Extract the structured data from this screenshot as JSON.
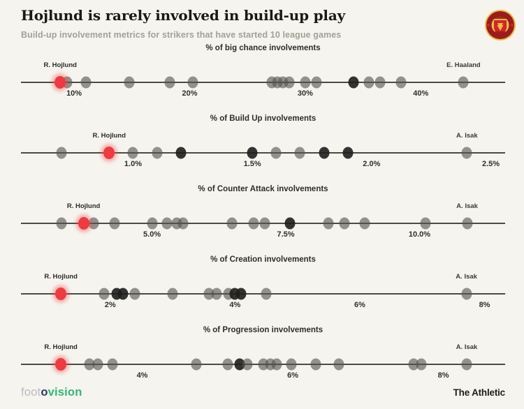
{
  "header": {
    "title": "Hojlund is rarely involved in build-up play",
    "subtitle": "Build-up involvement metrics for strikers that have started 10 league games",
    "club_badge": "Manchester United crest"
  },
  "footer": {
    "brand_left": {
      "foot": "foot",
      "o": "o",
      "vision": "vision"
    },
    "brand_right": "The Athletic"
  },
  "colors": {
    "background": "#f5f4ee",
    "accent_red": "#ee3a40",
    "dot_gray": "#55544f",
    "dot_dark": "#1e1e1c",
    "axis": "#4a4a46",
    "brand_green": "#33b57a",
    "brand_navy": "#273a60",
    "brand_gray": "#b9bcc4"
  },
  "chart_data": [
    {
      "type": "scatter",
      "title": "% of big chance involvements",
      "axis": {
        "min": 5.4,
        "max": 47.3,
        "grid": false
      },
      "ticks": [
        {
          "value": 10,
          "label": "10%"
        },
        {
          "value": 20,
          "label": "20%"
        },
        {
          "value": 30,
          "label": "30%"
        },
        {
          "value": 40,
          "label": "40%"
        }
      ],
      "highlight": {
        "name": "R. Hojlund",
        "value": 8.8
      },
      "annotation": {
        "name": "E. Haaland",
        "value": 43.7
      },
      "points": [
        {
          "value": 9.4
        },
        {
          "value": 11.0
        },
        {
          "value": 14.8
        },
        {
          "value": 18.3
        },
        {
          "value": 20.3
        },
        {
          "value": 27.1
        },
        {
          "value": 27.6
        },
        {
          "value": 28.1
        },
        {
          "value": 28.6
        },
        {
          "value": 30.0
        },
        {
          "value": 31.0
        },
        {
          "value": 34.2,
          "dark": true
        },
        {
          "value": 35.5
        },
        {
          "value": 36.5
        },
        {
          "value": 38.3
        }
      ]
    },
    {
      "type": "scatter",
      "title": "% of Build Up involvements",
      "axis": {
        "min": 0.53,
        "max": 2.56,
        "grid": false
      },
      "ticks": [
        {
          "value": 1.0,
          "label": "1.0%"
        },
        {
          "value": 1.5,
          "label": "1.5%"
        },
        {
          "value": 2.0,
          "label": "2.0%"
        },
        {
          "value": 2.5,
          "label": "2.5%"
        }
      ],
      "highlight": {
        "name": "R. Hojlund",
        "value": 0.9
      },
      "annotation": {
        "name": "A. Isak",
        "value": 2.4
      },
      "points": [
        {
          "value": 0.7
        },
        {
          "value": 1.0
        },
        {
          "value": 1.1
        },
        {
          "value": 1.2,
          "dark": true
        },
        {
          "value": 1.5,
          "dark": true
        },
        {
          "value": 1.6
        },
        {
          "value": 1.7
        },
        {
          "value": 1.8,
          "dark": true
        },
        {
          "value": 1.9,
          "dark": true
        }
      ]
    },
    {
      "type": "scatter",
      "title": "% of Counter Attack involvements",
      "axis": {
        "min": 2.55,
        "max": 11.6,
        "grid": false
      },
      "ticks": [
        {
          "value": 5.0,
          "label": "5.0%"
        },
        {
          "value": 7.5,
          "label": "7.5%"
        },
        {
          "value": 10.0,
          "label": "10.0%"
        }
      ],
      "highlight": {
        "name": "R. Hojlund",
        "value": 3.72
      },
      "annotation": {
        "name": "A. Isak",
        "value": 10.89
      },
      "points": [
        {
          "value": 3.31
        },
        {
          "value": 3.91
        },
        {
          "value": 4.3
        },
        {
          "value": 5.0
        },
        {
          "value": 5.28
        },
        {
          "value": 5.46
        },
        {
          "value": 5.58
        },
        {
          "value": 6.5
        },
        {
          "value": 6.9
        },
        {
          "value": 7.11
        },
        {
          "value": 7.58,
          "dark": true
        },
        {
          "value": 8.29
        },
        {
          "value": 8.59
        },
        {
          "value": 8.98
        },
        {
          "value": 10.11
        }
      ]
    },
    {
      "type": "scatter",
      "title": "% of Creation involvements",
      "axis": {
        "min": 0.57,
        "max": 8.33,
        "grid": false
      },
      "ticks": [
        {
          "value": 2,
          "label": "2%"
        },
        {
          "value": 4,
          "label": "4%"
        },
        {
          "value": 6,
          "label": "6%"
        },
        {
          "value": 8,
          "label": "8%"
        }
      ],
      "highlight": {
        "name": "R. Hojlund",
        "value": 1.21
      },
      "annotation": {
        "name": "A. Isak",
        "value": 7.71
      },
      "points": [
        {
          "value": 1.9
        },
        {
          "value": 2.1,
          "dark": true
        },
        {
          "value": 2.21,
          "dark": true
        },
        {
          "value": 2.4
        },
        {
          "value": 3.0
        },
        {
          "value": 3.58
        },
        {
          "value": 3.7
        },
        {
          "value": 3.9
        },
        {
          "value": 4.0,
          "dark": true
        },
        {
          "value": 4.1,
          "dark": true
        },
        {
          "value": 4.5
        }
      ]
    },
    {
      "type": "scatter",
      "title": "% of Progression involvements",
      "axis": {
        "min": 2.39,
        "max": 8.82,
        "grid": false
      },
      "ticks": [
        {
          "value": 4,
          "label": "4%"
        },
        {
          "value": 6,
          "label": "6%"
        },
        {
          "value": 8,
          "label": "8%"
        }
      ],
      "highlight": {
        "name": "R. Hojlund",
        "value": 2.92
      },
      "annotation": {
        "name": "A. Isak",
        "value": 8.31
      },
      "points": [
        {
          "value": 3.3
        },
        {
          "value": 3.41
        },
        {
          "value": 3.61
        },
        {
          "value": 4.72
        },
        {
          "value": 5.14
        },
        {
          "value": 5.29,
          "dark": true
        },
        {
          "value": 5.4
        },
        {
          "value": 5.61
        },
        {
          "value": 5.7
        },
        {
          "value": 5.79
        },
        {
          "value": 5.98
        },
        {
          "value": 6.31
        },
        {
          "value": 6.61
        },
        {
          "value": 7.6
        },
        {
          "value": 7.71
        }
      ]
    }
  ]
}
